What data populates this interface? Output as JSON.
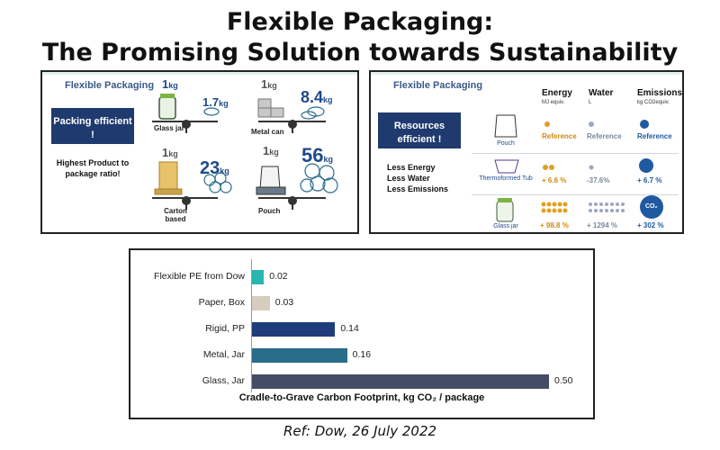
{
  "title_line1": "Flexible Packaging:",
  "title_line2": "The Promising Solution towards Sustainability",
  "panel1": {
    "brand": "Flexible Packaging",
    "label": "Packing efficient !",
    "side_text": "Highest Product to package ratio!",
    "items": [
      {
        "name": "Glass jar",
        "pack_value": "1",
        "product_value": "1.7",
        "unit": "kg"
      },
      {
        "name": "Metal can",
        "pack_value": "1",
        "product_value": "8.4",
        "unit": "kg"
      },
      {
        "name": "Carton based",
        "pack_value": "1",
        "product_value": "23",
        "unit": "kg"
      },
      {
        "name": "Pouch",
        "pack_value": "1",
        "product_value": "56",
        "unit": "kg"
      }
    ]
  },
  "panel2": {
    "brand": "Flexible Packaging",
    "label": "Resources efficient !",
    "side_lines": [
      "Less Energy",
      "Less Water",
      "Less Emissions"
    ],
    "columns": [
      {
        "head": "Energy",
        "sub": "MJ equiv."
      },
      {
        "head": "Water",
        "sub": "L"
      },
      {
        "head": "Emissions",
        "sub": "kg CO2equiv."
      }
    ],
    "rows": [
      {
        "name": "Pouch",
        "values": [
          "Reference",
          "Reference",
          "Reference"
        ]
      },
      {
        "name": "Thermoformed Tub",
        "values": [
          "+ 6.6 %",
          "-37.6%",
          "+ 6.7 %"
        ]
      },
      {
        "name": "Glass jar",
        "values": [
          "+ 98.8 %",
          "+ 1294 %",
          "+ 302 %"
        ]
      }
    ],
    "co2_text": "CO₂"
  },
  "chart_data": {
    "type": "bar",
    "orientation": "horizontal",
    "categories": [
      "Flexible PE from Dow",
      "Paper, Box",
      "Rigid, PP",
      "Metal, Jar",
      "Glass, Jar"
    ],
    "values": [
      0.02,
      0.03,
      0.14,
      0.16,
      0.5
    ],
    "value_labels": [
      "0.02",
      "0.03",
      "0.14",
      "0.16",
      "0.50"
    ],
    "colors": [
      "#2ab6b0",
      "#d6cdbf",
      "#1f3d7a",
      "#2a6d8a",
      "#454d66"
    ],
    "xlabel": "Cradle-to-Grave Carbon Footprint, kg CO₂ / package",
    "xlim": [
      0,
      0.5
    ]
  },
  "reference": "Ref: Dow, 26 July 2022"
}
